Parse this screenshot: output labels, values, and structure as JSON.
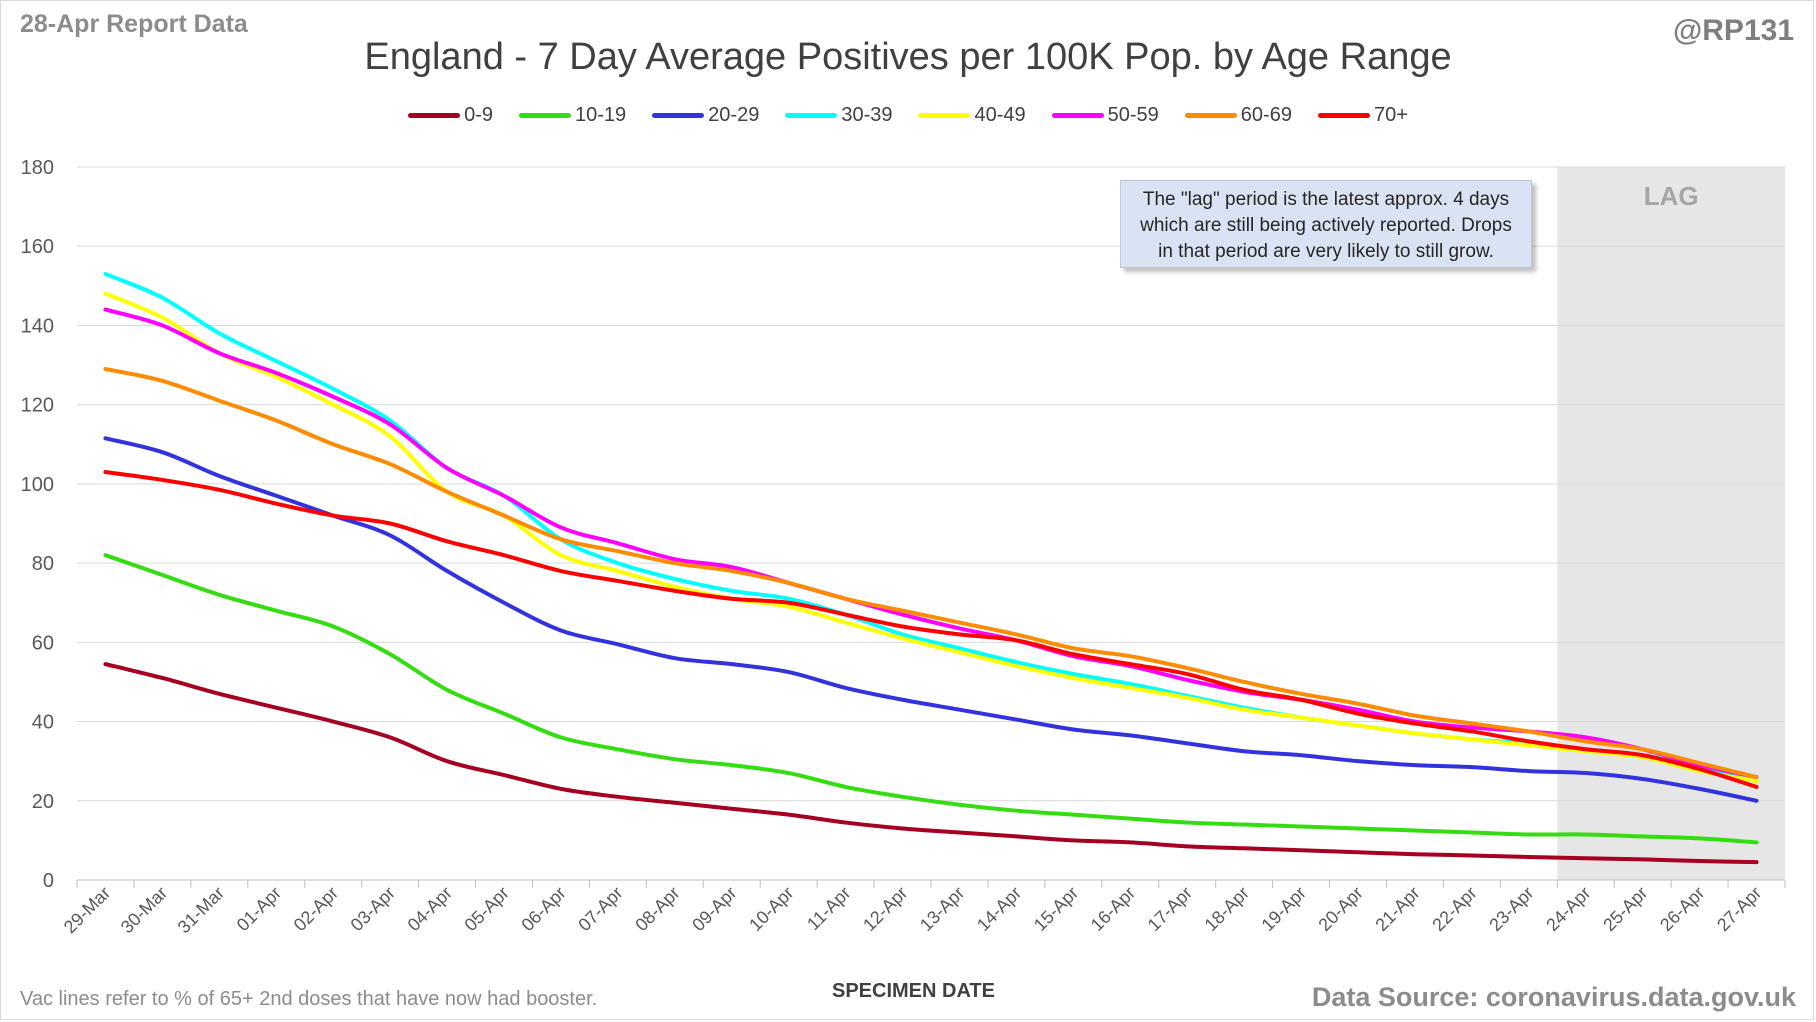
{
  "header": {
    "report_label": "28-Apr Report Data",
    "handle": "@RP131",
    "title": "England - 7 Day Average Positives per 100K Pop. by Age Range"
  },
  "footer": {
    "footnote": "Vac lines refer to % of 65+ 2nd doses that have now had booster.",
    "source": "Data Source: coronavirus.data.gov.uk"
  },
  "annotation": {
    "lag_note": "The \"lag\" period is the latest approx. 4 days which are still being actively reported.  Drops in that period are very likely to still grow.",
    "lag_label": "LAG"
  },
  "colors": {
    "lag_shade": "#e6e6e6",
    "grid": "#d9d9d9",
    "axis_text": "#595959"
  },
  "chart_data": {
    "type": "line",
    "title": "England - 7 Day Average Positives per 100K Pop. by Age Range",
    "xlabel": "SPECIMEN DATE",
    "ylabel": "",
    "ylim": [
      0,
      180
    ],
    "yticks": [
      0,
      20,
      40,
      60,
      80,
      100,
      120,
      140,
      160,
      180
    ],
    "grid": true,
    "legend_position": "top",
    "lag_region": [
      "24-Apr",
      "27-Apr"
    ],
    "x": [
      "29-Mar",
      "30-Mar",
      "31-Mar",
      "01-Apr",
      "02-Apr",
      "03-Apr",
      "04-Apr",
      "05-Apr",
      "06-Apr",
      "07-Apr",
      "08-Apr",
      "09-Apr",
      "10-Apr",
      "11-Apr",
      "12-Apr",
      "13-Apr",
      "14-Apr",
      "15-Apr",
      "16-Apr",
      "17-Apr",
      "18-Apr",
      "19-Apr",
      "20-Apr",
      "21-Apr",
      "22-Apr",
      "23-Apr",
      "24-Apr",
      "25-Apr",
      "26-Apr",
      "27-Apr"
    ],
    "series": [
      {
        "name": "0-9",
        "color": "#a50021",
        "values": [
          54.5,
          51,
          47,
          43.5,
          40,
          36,
          30,
          26.5,
          23,
          21,
          19.5,
          18,
          16.5,
          14.5,
          13,
          12,
          11,
          10,
          9.5,
          8.5,
          8,
          7.5,
          7,
          6.5,
          6.2,
          5.8,
          5.5,
          5.2,
          4.8,
          4.5
        ]
      },
      {
        "name": "10-19",
        "color": "#33dd11",
        "values": [
          82,
          77,
          72,
          68,
          64,
          57,
          48,
          42,
          36,
          33,
          30.5,
          29,
          27,
          23.5,
          21,
          19,
          17.5,
          16.5,
          15.5,
          14.5,
          14,
          13.5,
          13,
          12.5,
          12,
          11.5,
          11.5,
          11,
          10.5,
          9.5
        ]
      },
      {
        "name": "20-29",
        "color": "#3333dd",
        "values": [
          111.5,
          108,
          102,
          97,
          92,
          87,
          78,
          70,
          63,
          59.5,
          56,
          54.5,
          52.5,
          48.5,
          45.5,
          43,
          40.5,
          38,
          36.5,
          34.5,
          32.5,
          31.5,
          30,
          29,
          28.5,
          27.5,
          27,
          25.5,
          23,
          20
        ]
      },
      {
        "name": "30-39",
        "color": "#00ffff",
        "values": [
          153,
          147,
          138,
          131,
          124,
          116,
          104,
          97,
          86,
          80,
          76,
          73,
          71,
          67,
          62,
          58.5,
          55,
          52,
          49.5,
          46.5,
          43.5,
          41,
          39,
          37,
          35.5,
          34.5,
          33,
          31.5,
          28.5,
          25.5
        ]
      },
      {
        "name": "40-49",
        "color": "#ffff00",
        "values": [
          148,
          142,
          133,
          127,
          120,
          112,
          98,
          92,
          82,
          78,
          74,
          71,
          69,
          65,
          61,
          57.5,
          54,
          51,
          48.5,
          46,
          43,
          41,
          39,
          37,
          35.5,
          34,
          32.5,
          31,
          27.5,
          25
        ]
      },
      {
        "name": "50-59",
        "color": "#ff00ff",
        "values": [
          144,
          140,
          133,
          128,
          122,
          115,
          104,
          97,
          89,
          85,
          81,
          79,
          75,
          71,
          67,
          63.5,
          60.5,
          56.5,
          54,
          50.5,
          47.5,
          45.5,
          43,
          40,
          38.5,
          37.5,
          36,
          33,
          29,
          26
        ]
      },
      {
        "name": "60-69",
        "color": "#ff8c00",
        "values": [
          129,
          126,
          121,
          116,
          110,
          105,
          98,
          92,
          86,
          83,
          80,
          78,
          75,
          71,
          68,
          65,
          62,
          58.5,
          56.5,
          53.5,
          50,
          47,
          44.5,
          41.5,
          39.5,
          37.5,
          35,
          33,
          29.5,
          26
        ]
      },
      {
        "name": "70+",
        "color": "#ff0000",
        "values": [
          103,
          101,
          98.5,
          95,
          92,
          90,
          85.5,
          82,
          78,
          75.5,
          73,
          71,
          70,
          67,
          64,
          62,
          60.5,
          57,
          54.5,
          52,
          48,
          45.5,
          42,
          39.5,
          37.5,
          35,
          33,
          31.5,
          28,
          23.5
        ]
      }
    ]
  }
}
